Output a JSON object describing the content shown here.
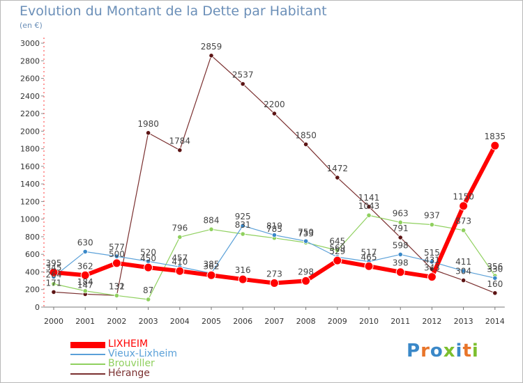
{
  "header": {
    "title": "Evolution du Montant de la Dette par Habitant",
    "subtitle": "(en €)"
  },
  "logo": {
    "text": "Proxiti",
    "colors": [
      "#3a88c8",
      "#e8752a",
      "#3a88c8",
      "#7cbf2e",
      "#3a88c8",
      "#e8752a",
      "#7cbf2e"
    ]
  },
  "chart_data": {
    "type": "line",
    "title": "Evolution du Montant de la Dette par Habitant",
    "subtitle": "(en €)",
    "xlabel": "",
    "ylabel": "",
    "ylim": [
      0,
      3000
    ],
    "yticks": [
      0,
      200,
      400,
      600,
      800,
      1000,
      1200,
      1400,
      1600,
      1800,
      2000,
      2200,
      2400,
      2600,
      2800,
      3000
    ],
    "categories": [
      "2000",
      "2001",
      "2002",
      "2003",
      "2004",
      "2005",
      "2006",
      "2007",
      "2008",
      "2009",
      "2010",
      "2011",
      "2012",
      "2013",
      "2014"
    ],
    "grid": false,
    "legend_position": "bottom-left",
    "series": [
      {
        "name": "Hérange",
        "color": "#7a2f2f",
        "marker": "#5c1414",
        "width": 1.2,
        "values": [
          171,
          147,
          132,
          1980,
          1784,
          2859,
          2537,
          2200,
          1850,
          1472,
          1141,
          791,
          431,
          304,
          160
        ]
      },
      {
        "name": "Brouviller",
        "color": "#8fd05e",
        "marker": "#8fd05e",
        "width": 1.2,
        "values": [
          264,
          184,
          131,
          87,
          796,
          884,
          831,
          785,
          733,
          645,
          1043,
          963,
          937,
          873,
          356
        ]
      },
      {
        "name": "Vieux-Lixheim",
        "color": "#5aa0d8",
        "marker": "#3a88c8",
        "width": 1.2,
        "values": [
          345,
          630,
          577,
          520,
          457,
          385,
          925,
          819,
          750,
          569,
          517,
          598,
          515,
          411,
          330
        ]
      },
      {
        "name": "LIXHEIM",
        "color": "#ff0000",
        "marker": "#ff0000",
        "width": 6,
        "values": [
          395,
          362,
          500,
          450,
          410,
          362,
          316,
          273,
          298,
          529,
          465,
          398,
          343,
          1150,
          1835
        ]
      }
    ]
  },
  "legend": {
    "items": [
      {
        "label": "LIXHEIM",
        "color": "#ff0000",
        "thickness": 9
      },
      {
        "label": "Vieux-Lixheim",
        "color": "#5aa0d8",
        "thickness": 2
      },
      {
        "label": "Brouviller",
        "color": "#8fd05e",
        "thickness": 2
      },
      {
        "label": "Hérange",
        "color": "#7a2f2f",
        "thickness": 2
      }
    ]
  }
}
